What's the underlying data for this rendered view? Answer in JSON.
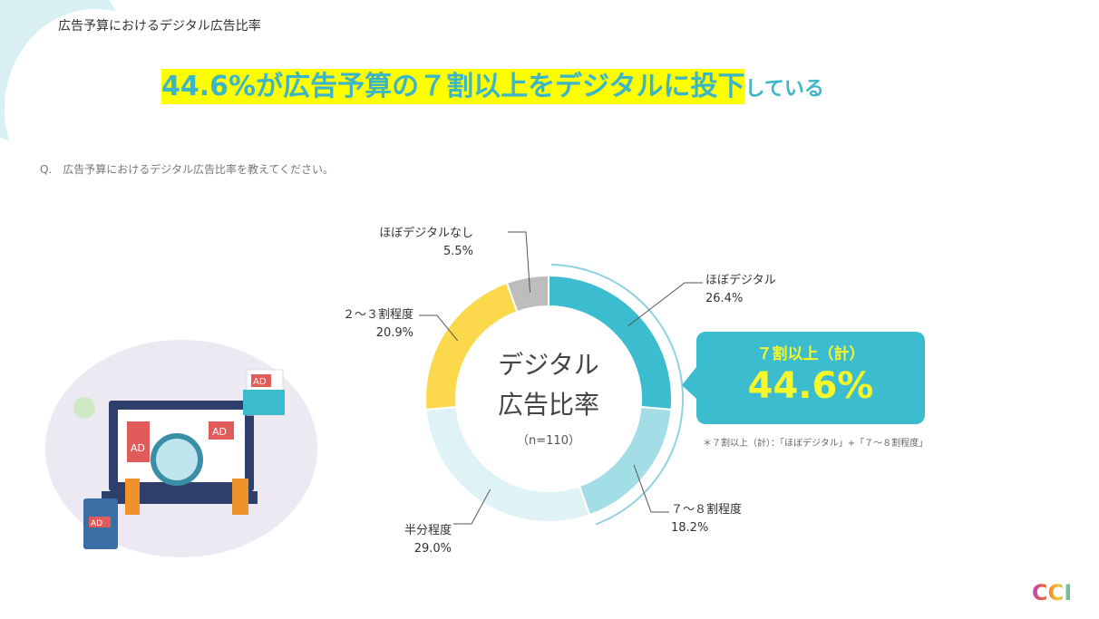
{
  "page_title": "広告予算におけるデジタル広告比率",
  "headline": {
    "highlight": "44.6%が広告予算の７割以上をデジタルに投下",
    "rest": "している"
  },
  "question": "Q.　広告予算におけるデジタル広告比率を教えてください。",
  "colors": {
    "accent": "#3bbccf",
    "highlight": "#ffff00"
  },
  "chart_data": {
    "type": "pie",
    "variant": "donut",
    "center_title": [
      "デジタル",
      "広告比率"
    ],
    "center_note": "（n=110）",
    "categories": [
      "ほぼデジタル",
      "７～８割程度",
      "半分程度",
      "２～３割程度",
      "ほぼデジタルなし"
    ],
    "values": [
      26.4,
      18.2,
      29.0,
      20.9,
      5.5
    ],
    "value_labels": [
      "26.4%",
      "18.2%",
      "29.0%",
      "20.9%",
      "5.5%"
    ],
    "colors": [
      "#3bbccf",
      "#a3dde6",
      "#dff2f5",
      "#fcd84c",
      "#bdbdbd"
    ]
  },
  "callout": {
    "title": "７割以上（計）",
    "value": "44.6%"
  },
  "note": "＊７割以上（計）：「ほぼデジタル」+「７～８割程度」",
  "illustration": {
    "ad_labels": [
      "AD",
      "AD",
      "AD",
      "AD"
    ]
  },
  "logo": "CCI"
}
